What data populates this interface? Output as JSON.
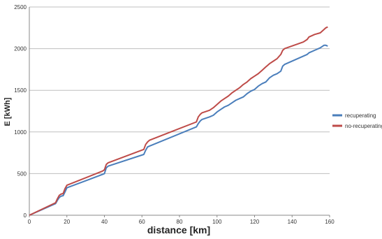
{
  "chart_data": {
    "type": "line",
    "xlabel": "distance [km]",
    "ylabel": "E [kWh]",
    "xlim": [
      0,
      160
    ],
    "ylim": [
      0,
      2500
    ],
    "x_ticks": [
      "0",
      "20",
      "40",
      "60",
      "80",
      "100",
      "120",
      "140",
      "160"
    ],
    "y_ticks": [
      "0",
      "500",
      "1000",
      "1500",
      "2000",
      "2500"
    ],
    "grid": "horizontal",
    "legend_position": "right",
    "series": [
      {
        "name": "recuperating",
        "color": "#4a7ebb",
        "points": [
          [
            0,
            0
          ],
          [
            14,
            140
          ],
          [
            15,
            180
          ],
          [
            16,
            215
          ],
          [
            17,
            230
          ],
          [
            18,
            235
          ],
          [
            19,
            280
          ],
          [
            20,
            330
          ],
          [
            39,
            490
          ],
          [
            40,
            500
          ],
          [
            41,
            570
          ],
          [
            42,
            590
          ],
          [
            61,
            730
          ],
          [
            62,
            780
          ],
          [
            63,
            820
          ],
          [
            64,
            830
          ],
          [
            89,
            1060
          ],
          [
            90,
            1100
          ],
          [
            91,
            1130
          ],
          [
            92,
            1150
          ],
          [
            96,
            1180
          ],
          [
            98,
            1200
          ],
          [
            100,
            1240
          ],
          [
            102,
            1270
          ],
          [
            104,
            1300
          ],
          [
            106,
            1320
          ],
          [
            108,
            1350
          ],
          [
            110,
            1380
          ],
          [
            112,
            1400
          ],
          [
            114,
            1420
          ],
          [
            116,
            1460
          ],
          [
            118,
            1490
          ],
          [
            120,
            1510
          ],
          [
            122,
            1550
          ],
          [
            124,
            1580
          ],
          [
            126,
            1600
          ],
          [
            128,
            1650
          ],
          [
            130,
            1680
          ],
          [
            132,
            1700
          ],
          [
            134,
            1730
          ],
          [
            135,
            1790
          ],
          [
            136,
            1810
          ],
          [
            146,
            1910
          ],
          [
            148,
            1930
          ],
          [
            149,
            1950
          ],
          [
            152,
            1980
          ],
          [
            155,
            2010
          ],
          [
            157,
            2040
          ],
          [
            158,
            2040
          ],
          [
            159,
            2030
          ]
        ]
      },
      {
        "name": "no-recuperating",
        "color": "#be4b48",
        "points": [
          [
            0,
            0
          ],
          [
            14,
            150
          ],
          [
            15,
            200
          ],
          [
            16,
            240
          ],
          [
            17,
            255
          ],
          [
            18,
            260
          ],
          [
            19,
            320
          ],
          [
            20,
            360
          ],
          [
            39,
            530
          ],
          [
            40,
            545
          ],
          [
            41,
            610
          ],
          [
            42,
            630
          ],
          [
            61,
            790
          ],
          [
            62,
            850
          ],
          [
            63,
            880
          ],
          [
            64,
            900
          ],
          [
            89,
            1120
          ],
          [
            90,
            1180
          ],
          [
            91,
            1210
          ],
          [
            92,
            1230
          ],
          [
            96,
            1260
          ],
          [
            98,
            1290
          ],
          [
            100,
            1330
          ],
          [
            102,
            1370
          ],
          [
            104,
            1400
          ],
          [
            106,
            1430
          ],
          [
            108,
            1470
          ],
          [
            110,
            1500
          ],
          [
            112,
            1530
          ],
          [
            114,
            1570
          ],
          [
            116,
            1600
          ],
          [
            118,
            1640
          ],
          [
            120,
            1670
          ],
          [
            122,
            1700
          ],
          [
            124,
            1740
          ],
          [
            126,
            1780
          ],
          [
            128,
            1820
          ],
          [
            130,
            1850
          ],
          [
            132,
            1880
          ],
          [
            134,
            1930
          ],
          [
            135,
            1980
          ],
          [
            136,
            2000
          ],
          [
            146,
            2080
          ],
          [
            148,
            2110
          ],
          [
            149,
            2140
          ],
          [
            152,
            2170
          ],
          [
            155,
            2190
          ],
          [
            157,
            2230
          ],
          [
            158,
            2250
          ],
          [
            159,
            2260
          ]
        ]
      }
    ]
  }
}
